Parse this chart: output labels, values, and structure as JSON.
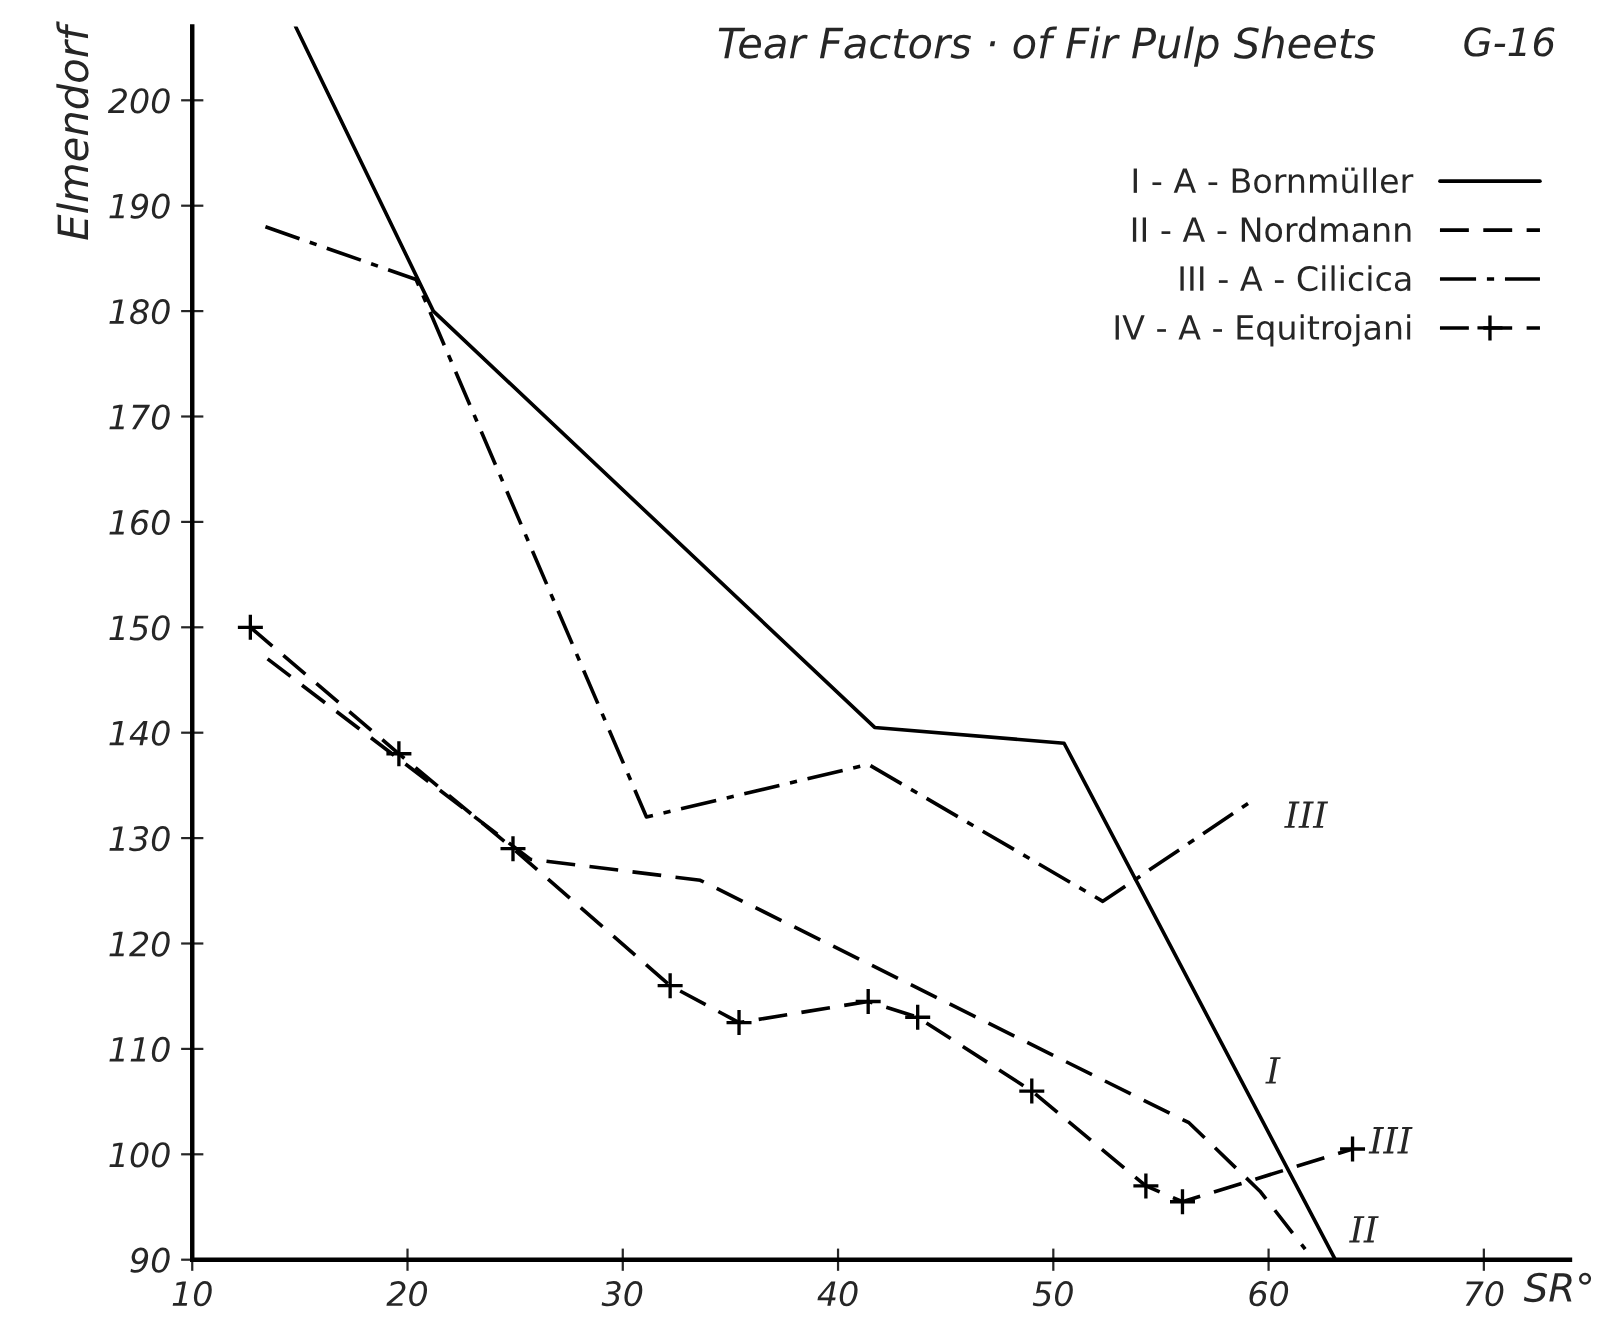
{
  "chart_data": {
    "type": "line",
    "title": "Tear Factors · of Fir Pulp Sheets",
    "ylabel": "Elmendorf",
    "xlabel": "SR°",
    "xlim": [
      10,
      74
    ],
    "xticks": [
      10,
      20,
      30,
      40,
      50,
      60,
      70
    ],
    "ylim": [
      90,
      207
    ],
    "yticks": [
      90,
      100,
      110,
      120,
      130,
      140,
      150,
      160,
      170,
      180,
      190,
      200
    ],
    "grid": false,
    "legend": "top right",
    "series": [
      {
        "name": "I - A - Bornmüller",
        "color": "#000000",
        "line_style": "solid",
        "marker": "none",
        "x": [
          14.8,
          21.2,
          41.7,
          50.5,
          63.1
        ],
        "values": [
          207,
          180,
          140.5,
          139,
          90
        ]
      },
      {
        "name": "II - A - Nordmann",
        "color": "#000000",
        "line_style": "dashed",
        "marker": "none",
        "x": [
          13.5,
          25.7,
          33.6,
          56.3,
          59.6,
          61.7
        ],
        "values": [
          147,
          128,
          126,
          103,
          96.5,
          91
        ]
      },
      {
        "name": "III - A - Cilicica",
        "color": "#000000",
        "line_style": "dashdot",
        "marker": "none",
        "x": [
          13.4,
          20.4,
          31.1,
          41.4,
          52.3,
          59.2
        ],
        "values": [
          188,
          183,
          132,
          137,
          124,
          133.5
        ]
      },
      {
        "name": "IV - A - Equitrojani",
        "color": "#000000",
        "line_style": "dashed",
        "marker": "cross",
        "x": [
          12.7,
          19.6,
          24.9,
          32.2,
          35.4,
          41.4,
          43.7,
          49,
          54.3,
          56,
          63.9
        ],
        "values": [
          150,
          138,
          129,
          116,
          112.5,
          114.5,
          113,
          106,
          97,
          95.5,
          100.5
        ]
      }
    ],
    "annotations": [
      "G-16",
      "III",
      "III",
      "I",
      "II"
    ]
  }
}
